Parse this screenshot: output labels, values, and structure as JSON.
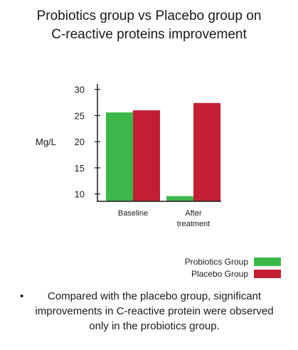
{
  "title_lines": [
    "Probiotics group vs Placebo group on",
    "C-reactive proteins improvement"
  ],
  "note": {
    "bullet": "•",
    "text": "Compared with the placebo group, significant improvements in C-reactive protein were observed only in the probiotics group."
  },
  "colors": {
    "probiotics": "#3cb84b",
    "placebo": "#c41e34",
    "axis": "#1a1a1a"
  },
  "chart_data": {
    "type": "bar",
    "title": "Probiotics group vs Placebo group on C-reactive proteins improvement",
    "ylabel": "Mg/L",
    "xlabel": "",
    "categories": [
      "Baseline",
      "After\ntreatment"
    ],
    "series": [
      {
        "name": "Probiotics Group",
        "values": [
          25.6,
          9.6
        ]
      },
      {
        "name": "Placebo Group",
        "values": [
          26.0,
          27.4
        ]
      }
    ],
    "ylim": [
      8.6,
      30.5
    ],
    "yticks": [
      10,
      15,
      20,
      25,
      30
    ],
    "grid": false,
    "legend": "bottom-right"
  }
}
